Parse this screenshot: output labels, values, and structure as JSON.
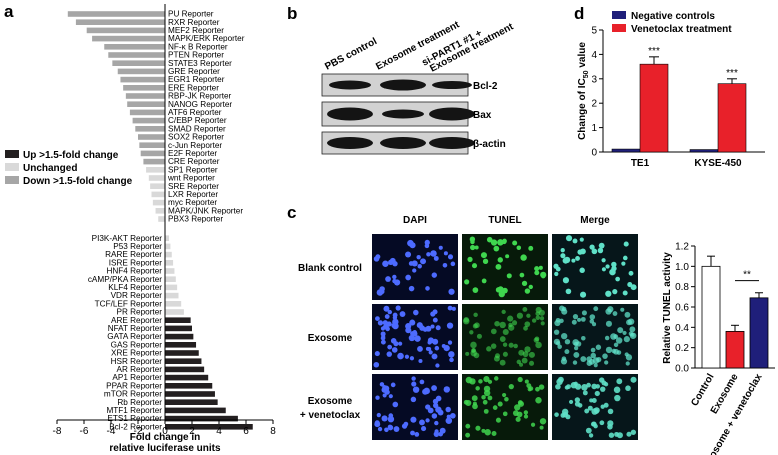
{
  "panels": {
    "a": "a",
    "b": "b",
    "c": "c",
    "d": "d"
  },
  "reporter_chart": {
    "chart_data": {
      "type": "bar",
      "orientation": "horizontal",
      "xlabel_lines": [
        "Fold change in",
        "relative luciferase units"
      ],
      "xlim": [
        -8,
        8
      ],
      "xticks": [
        "-8",
        "-6",
        "-4",
        "-2",
        "0",
        "2",
        "4",
        "6",
        "8"
      ],
      "legend": [
        {
          "name": "Up >1.5-fold change",
          "color": "#231f20"
        },
        {
          "name": "Unchanged",
          "color": "#d9d9d9"
        },
        {
          "name": "Down >1.5-fold change",
          "color": "#a6a6a6"
        }
      ],
      "reporters": [
        {
          "name": "PU Reporter",
          "value": -7.2,
          "group": "down"
        },
        {
          "name": "RXR Reporter",
          "value": -6.6,
          "group": "down"
        },
        {
          "name": "MEF2 Reporter",
          "value": -5.8,
          "group": "down"
        },
        {
          "name": "MAPK/ERK Reporter",
          "value": -5.4,
          "group": "down"
        },
        {
          "name": "NF-κ B Reporter",
          "value": -4.5,
          "group": "down"
        },
        {
          "name": "PTEN Reporter",
          "value": -4.2,
          "group": "down"
        },
        {
          "name": "STATE3 Reporter",
          "value": -3.9,
          "group": "down"
        },
        {
          "name": "GRE Reporter",
          "value": -3.5,
          "group": "down"
        },
        {
          "name": "EGR1 Reporter",
          "value": -3.3,
          "group": "down"
        },
        {
          "name": "ERE Reporter",
          "value": -3.1,
          "group": "down"
        },
        {
          "name": "RBP-JK Reporter",
          "value": -2.9,
          "group": "down"
        },
        {
          "name": "NANOG Reporter",
          "value": -2.8,
          "group": "down"
        },
        {
          "name": "ATF6 Reporter",
          "value": -2.6,
          "group": "down"
        },
        {
          "name": "C/EBP Reporter",
          "value": -2.4,
          "group": "down"
        },
        {
          "name": "SMAD Reporter",
          "value": -2.2,
          "group": "down"
        },
        {
          "name": "SOX2 Reporter",
          "value": -2.0,
          "group": "down"
        },
        {
          "name": "c-Jun Reporter",
          "value": -1.9,
          "group": "down"
        },
        {
          "name": "E2F Reporter",
          "value": -1.8,
          "group": "down"
        },
        {
          "name": "CRE Reporter",
          "value": -1.6,
          "group": "down"
        },
        {
          "name": "SP1 Reporter",
          "value": -1.4,
          "group": "unchanged"
        },
        {
          "name": "wnt Reporter",
          "value": -1.2,
          "group": "unchanged"
        },
        {
          "name": "SRE Reporter",
          "value": -1.1,
          "group": "unchanged"
        },
        {
          "name": "LXR Reporter",
          "value": -1.0,
          "group": "unchanged"
        },
        {
          "name": "myc Reporter",
          "value": -0.9,
          "group": "unchanged"
        },
        {
          "name": "MAPK/JNK Reporter",
          "value": -0.7,
          "group": "unchanged"
        },
        {
          "name": "PBX3 Reporter",
          "value": -0.5,
          "group": "unchanged"
        },
        {
          "name": "PI3K-AKT Reporter",
          "value": 0.3,
          "group": "unchanged"
        },
        {
          "name": "P53 Reporter",
          "value": 0.4,
          "group": "unchanged"
        },
        {
          "name": "RARE Reporter",
          "value": 0.5,
          "group": "unchanged"
        },
        {
          "name": "ISRE Reporter",
          "value": 0.6,
          "group": "unchanged"
        },
        {
          "name": "HNF4 Reporter",
          "value": 0.7,
          "group": "unchanged"
        },
        {
          "name": "cAMP/PKA Reporter",
          "value": 0.8,
          "group": "unchanged"
        },
        {
          "name": "KLF4 Reporter",
          "value": 0.9,
          "group": "unchanged"
        },
        {
          "name": "VDR Reporter",
          "value": 1.0,
          "group": "unchanged"
        },
        {
          "name": "TCF/LEF Reporter",
          "value": 1.2,
          "group": "unchanged"
        },
        {
          "name": "PR Reporter",
          "value": 1.4,
          "group": "unchanged"
        },
        {
          "name": "ARE Reporter",
          "value": 1.9,
          "group": "up"
        },
        {
          "name": "NFAT Reporter",
          "value": 2.0,
          "group": "up"
        },
        {
          "name": "GATA Reporter",
          "value": 2.1,
          "group": "up"
        },
        {
          "name": "GAS Reporter",
          "value": 2.3,
          "group": "up"
        },
        {
          "name": "XRE Reporter",
          "value": 2.5,
          "group": "up"
        },
        {
          "name": "HSR Reporter",
          "value": 2.7,
          "group": "up"
        },
        {
          "name": "AR Reporter",
          "value": 2.9,
          "group": "up"
        },
        {
          "name": "AP1 Reporter",
          "value": 3.2,
          "group": "up"
        },
        {
          "name": "PPAR Reporter",
          "value": 3.5,
          "group": "up"
        },
        {
          "name": "mTOR Reporter",
          "value": 3.7,
          "group": "up"
        },
        {
          "name": "Rb Reporter",
          "value": 3.9,
          "group": "up"
        },
        {
          "name": "MTF1 Reporter",
          "value": 4.5,
          "group": "up"
        },
        {
          "name": "ETS1 Reporter",
          "value": 5.4,
          "group": "up"
        },
        {
          "name": "Bcl-2 Reporter",
          "value": 6.5,
          "group": "up"
        }
      ]
    }
  },
  "western": {
    "lanes": [
      "PBS control",
      "Exosome treatment",
      "si-PART1 #1 +",
      "Exosome treatment"
    ],
    "bands": [
      "Bcl-2",
      "Bax",
      "β-actin"
    ]
  },
  "ic50_chart": {
    "chart_data": {
      "type": "bar",
      "ylabel_pre": "Change of IC",
      "ylabel_sub": "50",
      "ylabel_post": " value",
      "ylim": [
        0,
        5
      ],
      "yticks": [
        "0",
        "1",
        "2",
        "3",
        "4",
        "5"
      ],
      "categories": [
        "TE1",
        "KYSE-450"
      ],
      "series": [
        {
          "name": "Negative controls",
          "color": "#1f1f7a",
          "values": [
            0.12,
            0.1
          ]
        },
        {
          "name": "Venetoclax treatment",
          "color": "#e8212a",
          "values": [
            3.6,
            2.8
          ],
          "errors": [
            0.3,
            0.2
          ]
        }
      ],
      "significance": [
        "***",
        "***"
      ]
    }
  },
  "microscopy": {
    "columns": [
      "DAPI",
      "TUNEL",
      "Merge"
    ],
    "rows": [
      {
        "label_lines": [
          "Blank control"
        ]
      },
      {
        "label_lines": [
          "Exosome"
        ]
      },
      {
        "label_lines": [
          "Exosome",
          "+ venetoclax"
        ]
      }
    ]
  },
  "tunel_chart": {
    "chart_data": {
      "type": "bar",
      "ylabel": "Relative TUNEL activity",
      "ylim": [
        0,
        1.2
      ],
      "yticks": [
        "0.0",
        "0.2",
        "0.4",
        "0.6",
        "0.8",
        "1.0",
        "1.2"
      ],
      "categories": [
        "Control",
        "Exosome",
        "Exosome + venetoclax"
      ],
      "values": [
        1.0,
        0.36,
        0.69
      ],
      "errors": [
        0.1,
        0.06,
        0.05
      ],
      "colors": [
        "#ffffff",
        "#e8212a",
        "#1f1f7a"
      ],
      "significance": "**"
    }
  }
}
